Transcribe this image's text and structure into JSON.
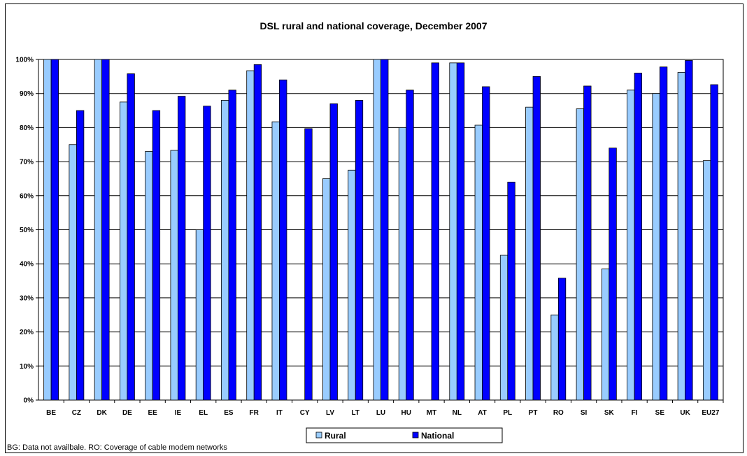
{
  "chart_data": {
    "type": "bar",
    "title": "DSL rural and national coverage, December 2007",
    "categories": [
      "BE",
      "CZ",
      "DK",
      "DE",
      "EE",
      "IE",
      "EL",
      "ES",
      "FR",
      "IT",
      "CY",
      "LV",
      "LT",
      "LU",
      "HU",
      "MT",
      "NL",
      "AT",
      "PL",
      "PT",
      "RO",
      "SI",
      "SK",
      "FI",
      "SE",
      "UK",
      "EU27"
    ],
    "series": [
      {
        "name": "Rural",
        "color": "#99CCFF",
        "values": [
          100,
          75,
          100,
          87.5,
          73,
          73.3,
          50,
          88,
          96.7,
          81.7,
          null,
          65,
          67.5,
          100,
          80,
          null,
          99,
          80.7,
          42.5,
          86,
          25,
          85.5,
          38.5,
          91,
          90,
          96.2,
          70.3
        ]
      },
      {
        "name": "National",
        "color": "#0000FF",
        "values": [
          100,
          85,
          100,
          95.8,
          85,
          89.2,
          86.3,
          91,
          98.5,
          94,
          79.7,
          87,
          88,
          100,
          91,
          99,
          99,
          92,
          64,
          95,
          35.8,
          92.2,
          74,
          96,
          97.8,
          99.7,
          92.6
        ]
      }
    ],
    "y_ticks": [
      "0%",
      "10%",
      "20%",
      "30%",
      "40%",
      "50%",
      "60%",
      "70%",
      "80%",
      "90%",
      "100%"
    ],
    "ylim": [
      0,
      100
    ],
    "grid": true,
    "legend_position": "bottom"
  },
  "footnote": "BG: Data not availbale. RO: Coverage of cable modem networks"
}
